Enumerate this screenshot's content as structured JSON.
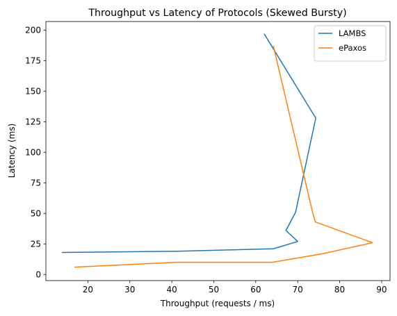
{
  "chart_data": {
    "type": "line",
    "title": "Throughput vs Latency of Protocols (Skewed Bursty)",
    "xlabel": "Throughput (requests / ms)",
    "ylabel": "Latency (ms)",
    "xlim": [
      10,
      92
    ],
    "ylim": [
      -5,
      207
    ],
    "xticks": [
      20,
      30,
      40,
      50,
      60,
      70,
      80,
      90
    ],
    "yticks": [
      0,
      25,
      50,
      75,
      100,
      125,
      150,
      175,
      200
    ],
    "grid": false,
    "legend_position": "top-right",
    "series": [
      {
        "name": "LAMBS",
        "color": "#1f77b4",
        "x": [
          62.0,
          74.3,
          69.5,
          67.2,
          70.0,
          64.2,
          41.3,
          13.8
        ],
        "y": [
          197,
          128,
          51,
          36,
          27,
          21,
          19,
          18
        ]
      },
      {
        "name": "ePaxos",
        "color": "#ff7f0e",
        "x": [
          64.2,
          73.6,
          74.2,
          87.8,
          76.0,
          64.0,
          41.2,
          16.8
        ],
        "y": [
          187,
          50,
          43,
          26,
          17,
          10,
          10,
          6
        ]
      }
    ]
  }
}
